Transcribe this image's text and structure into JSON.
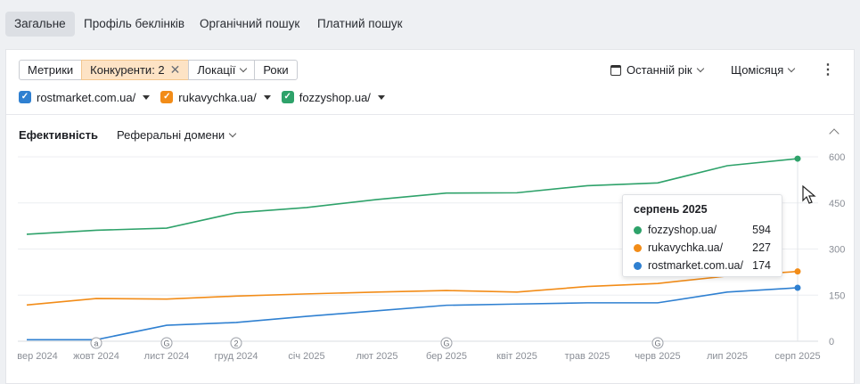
{
  "tabs": [
    {
      "label": "Загальне",
      "active": true
    },
    {
      "label": "Профіль беклінків",
      "active": false
    },
    {
      "label": "Органічний пошук",
      "active": false
    },
    {
      "label": "Платний пошук",
      "active": false
    }
  ],
  "filters": {
    "metrics": "Метрики",
    "competitors": "Конкуренти: 2",
    "locations": "Локації",
    "years": "Роки"
  },
  "controls": {
    "period": "Останній рік",
    "granularity": "Щомісяця"
  },
  "domains": [
    {
      "label": "rostmarket.com.ua/",
      "color": "#2f80d1"
    },
    {
      "label": "rukavychka.ua/",
      "color": "#f28c18"
    },
    {
      "label": "fozzyshop.ua/",
      "color": "#2ea26a"
    }
  ],
  "section": {
    "title": "Ефективність",
    "metric_dropdown": "Реферальні домени"
  },
  "tooltip": {
    "title": "серпень 2025",
    "rows": [
      {
        "name": "fozzyshop.ua/",
        "value": "594",
        "color": "#2ea26a"
      },
      {
        "name": "rukavychka.ua/",
        "value": "227",
        "color": "#f28c18"
      },
      {
        "name": "rostmarket.com.ua/",
        "value": "174",
        "color": "#2f80d1"
      }
    ]
  },
  "chart_data": {
    "type": "line",
    "x": [
      "вер 2024",
      "жовт 2024",
      "лист 2024",
      "груд 2024",
      "січ 2025",
      "лют 2025",
      "бер 2025",
      "квіт 2025",
      "трав 2025",
      "черв 2025",
      "лип 2025",
      "серп 2025"
    ],
    "series": [
      {
        "name": "fozzyshop.ua/",
        "color": "#2ea26a",
        "values": [
          348,
          361,
          368,
          418,
          435,
          461,
          482,
          483,
          506,
          515,
          571,
          594
        ]
      },
      {
        "name": "rukavychka.ua/",
        "color": "#f28c18",
        "values": [
          118,
          139,
          137,
          147,
          154,
          160,
          165,
          160,
          178,
          188,
          212,
          227
        ]
      },
      {
        "name": "rostmarket.com.ua/",
        "color": "#2f80d1",
        "values": [
          5,
          5,
          52,
          61,
          81,
          99,
          117,
          121,
          125,
          125,
          160,
          174
        ]
      }
    ],
    "yticks": [
      "600",
      "450",
      "300",
      "150",
      "0"
    ],
    "ylim": [
      0,
      600
    ],
    "annotations": [
      {
        "x": "жовт 2024",
        "label": "a"
      },
      {
        "x": "лист 2024",
        "label": "G"
      },
      {
        "x": "груд 2024",
        "label": "2"
      },
      {
        "x": "бер 2025",
        "label": "G"
      },
      {
        "x": "черв 2025",
        "label": "G"
      }
    ],
    "grid": true
  }
}
